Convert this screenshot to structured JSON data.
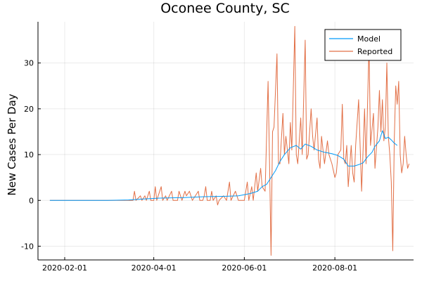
{
  "chart_data": {
    "type": "line",
    "title": "Oconee County, SC",
    "xlabel": "",
    "ylabel": "New Cases Per Day",
    "xlim": [
      "2020-01-14",
      "2020-09-23"
    ],
    "ylim": [
      -13,
      39
    ],
    "x_ticks": [
      {
        "date": "2020-02-01",
        "label": "2020-02-01"
      },
      {
        "date": "2020-04-01",
        "label": "2020-04-01"
      },
      {
        "date": "2020-06-01",
        "label": "2020-06-01"
      },
      {
        "date": "2020-08-01",
        "label": "2020-08-01"
      }
    ],
    "y_ticks": [
      {
        "value": -10,
        "label": "-10"
      },
      {
        "value": 0,
        "label": "0"
      },
      {
        "value": 10,
        "label": "10"
      },
      {
        "value": 20,
        "label": "20"
      },
      {
        "value": 30,
        "label": "30"
      }
    ],
    "grid": true,
    "legend_position": "top-right",
    "series": [
      {
        "name": "Model",
        "color": "#009af9",
        "points": [
          [
            "2020-01-22",
            0
          ],
          [
            "2020-03-01",
            0
          ],
          [
            "2020-03-15",
            0.1
          ],
          [
            "2020-03-25",
            0.3
          ],
          [
            "2020-04-05",
            0.5
          ],
          [
            "2020-04-20",
            0.6
          ],
          [
            "2020-05-05",
            0.8
          ],
          [
            "2020-05-20",
            0.9
          ],
          [
            "2020-05-28",
            1.0
          ],
          [
            "2020-06-05",
            1.5
          ],
          [
            "2020-06-10",
            2.0
          ],
          [
            "2020-06-13",
            3.0
          ],
          [
            "2020-06-16",
            3.5
          ],
          [
            "2020-06-19",
            5.0
          ],
          [
            "2020-06-22",
            6.5
          ],
          [
            "2020-06-25",
            8.5
          ],
          [
            "2020-06-28",
            10.0
          ],
          [
            "2020-07-02",
            11.5
          ],
          [
            "2020-07-06",
            12.0
          ],
          [
            "2020-07-09",
            11.2
          ],
          [
            "2020-07-12",
            12.3
          ],
          [
            "2020-07-16",
            11.8
          ],
          [
            "2020-07-20",
            11.0
          ],
          [
            "2020-07-25",
            10.5
          ],
          [
            "2020-07-30",
            10.2
          ],
          [
            "2020-08-03",
            9.8
          ],
          [
            "2020-08-07",
            9.0
          ],
          [
            "2020-08-10",
            7.5
          ],
          [
            "2020-08-14",
            7.5
          ],
          [
            "2020-08-17",
            7.8
          ],
          [
            "2020-08-20",
            8.2
          ],
          [
            "2020-08-23",
            9.5
          ],
          [
            "2020-08-26",
            10.5
          ],
          [
            "2020-08-28",
            11.8
          ],
          [
            "2020-08-31",
            13.0
          ],
          [
            "2020-09-02",
            15.2
          ],
          [
            "2020-09-04",
            13.5
          ],
          [
            "2020-09-06",
            13.8
          ],
          [
            "2020-09-08",
            13.2
          ],
          [
            "2020-09-10",
            12.5
          ],
          [
            "2020-09-12",
            12.0
          ]
        ]
      },
      {
        "name": "Reported",
        "color": "#e26f46",
        "points": [
          [
            "2020-01-22",
            0
          ],
          [
            "2020-03-15",
            0
          ],
          [
            "2020-03-18",
            0
          ],
          [
            "2020-03-19",
            2
          ],
          [
            "2020-03-20",
            0
          ],
          [
            "2020-03-23",
            1
          ],
          [
            "2020-03-24",
            0
          ],
          [
            "2020-03-26",
            1
          ],
          [
            "2020-03-27",
            0
          ],
          [
            "2020-03-29",
            2
          ],
          [
            "2020-03-30",
            0
          ],
          [
            "2020-04-01",
            0
          ],
          [
            "2020-04-02",
            3
          ],
          [
            "2020-04-03",
            0
          ],
          [
            "2020-04-06",
            3
          ],
          [
            "2020-04-07",
            0
          ],
          [
            "2020-04-09",
            1
          ],
          [
            "2020-04-10",
            0
          ],
          [
            "2020-04-13",
            2
          ],
          [
            "2020-04-14",
            0
          ],
          [
            "2020-04-17",
            0
          ],
          [
            "2020-04-18",
            2
          ],
          [
            "2020-04-20",
            0
          ],
          [
            "2020-04-22",
            2
          ],
          [
            "2020-04-23",
            1
          ],
          [
            "2020-04-25",
            2
          ],
          [
            "2020-04-27",
            0
          ],
          [
            "2020-05-01",
            2
          ],
          [
            "2020-05-02",
            0
          ],
          [
            "2020-05-04",
            0
          ],
          [
            "2020-05-05",
            1
          ],
          [
            "2020-05-06",
            3
          ],
          [
            "2020-05-07",
            0
          ],
          [
            "2020-05-09",
            0
          ],
          [
            "2020-05-10",
            2
          ],
          [
            "2020-05-11",
            0
          ],
          [
            "2020-05-13",
            1
          ],
          [
            "2020-05-14",
            -1
          ],
          [
            "2020-05-15",
            0
          ],
          [
            "2020-05-18",
            1
          ],
          [
            "2020-05-20",
            0
          ],
          [
            "2020-05-22",
            4
          ],
          [
            "2020-05-23",
            0
          ],
          [
            "2020-05-26",
            2
          ],
          [
            "2020-05-28",
            0
          ],
          [
            "2020-05-30",
            0
          ],
          [
            "2020-06-01",
            0
          ],
          [
            "2020-06-03",
            4
          ],
          [
            "2020-06-04",
            0
          ],
          [
            "2020-06-06",
            3
          ],
          [
            "2020-06-07",
            0
          ],
          [
            "2020-06-09",
            6
          ],
          [
            "2020-06-10",
            2
          ],
          [
            "2020-06-12",
            7
          ],
          [
            "2020-06-13",
            3
          ],
          [
            "2020-06-15",
            2
          ],
          [
            "2020-06-17",
            26
          ],
          [
            "2020-06-18",
            8
          ],
          [
            "2020-06-19",
            -12
          ],
          [
            "2020-06-20",
            15
          ],
          [
            "2020-06-21",
            16
          ],
          [
            "2020-06-23",
            32
          ],
          [
            "2020-06-24",
            8
          ],
          [
            "2020-06-25",
            8
          ],
          [
            "2020-06-27",
            19
          ],
          [
            "2020-06-28",
            10
          ],
          [
            "2020-06-29",
            14
          ],
          [
            "2020-07-01",
            8
          ],
          [
            "2020-07-02",
            17
          ],
          [
            "2020-07-03",
            11
          ],
          [
            "2020-07-05",
            38
          ],
          [
            "2020-07-06",
            10
          ],
          [
            "2020-07-07",
            8
          ],
          [
            "2020-07-09",
            18
          ],
          [
            "2020-07-10",
            10
          ],
          [
            "2020-07-12",
            35
          ],
          [
            "2020-07-13",
            9
          ],
          [
            "2020-07-14",
            10
          ],
          [
            "2020-07-16",
            20
          ],
          [
            "2020-07-17",
            14
          ],
          [
            "2020-07-18",
            11
          ],
          [
            "2020-07-20",
            18
          ],
          [
            "2020-07-21",
            9
          ],
          [
            "2020-07-22",
            7
          ],
          [
            "2020-07-23",
            14
          ],
          [
            "2020-07-25",
            8
          ],
          [
            "2020-07-27",
            13
          ],
          [
            "2020-07-28",
            10
          ],
          [
            "2020-07-30",
            8
          ],
          [
            "2020-08-01",
            5
          ],
          [
            "2020-08-02",
            6
          ],
          [
            "2020-08-03",
            10
          ],
          [
            "2020-08-05",
            11
          ],
          [
            "2020-08-06",
            21
          ],
          [
            "2020-08-07",
            9
          ],
          [
            "2020-08-08",
            8
          ],
          [
            "2020-08-09",
            12
          ],
          [
            "2020-08-10",
            3
          ],
          [
            "2020-08-12",
            12
          ],
          [
            "2020-08-13",
            6
          ],
          [
            "2020-08-14",
            4
          ],
          [
            "2020-08-15",
            12
          ],
          [
            "2020-08-17",
            22
          ],
          [
            "2020-08-18",
            12
          ],
          [
            "2020-08-19",
            2
          ],
          [
            "2020-08-21",
            20
          ],
          [
            "2020-08-22",
            8
          ],
          [
            "2020-08-24",
            34
          ],
          [
            "2020-08-25",
            12
          ],
          [
            "2020-08-27",
            19
          ],
          [
            "2020-08-28",
            7
          ],
          [
            "2020-08-30",
            16
          ],
          [
            "2020-08-31",
            24
          ],
          [
            "2020-09-01",
            15
          ],
          [
            "2020-09-02",
            22
          ],
          [
            "2020-09-03",
            13
          ],
          [
            "2020-09-04",
            16
          ],
          [
            "2020-09-05",
            30
          ],
          [
            "2020-09-06",
            14
          ],
          [
            "2020-09-07",
            10
          ],
          [
            "2020-09-08",
            4
          ],
          [
            "2020-09-09",
            -11
          ],
          [
            "2020-09-10",
            13
          ],
          [
            "2020-09-11",
            25
          ],
          [
            "2020-09-12",
            21
          ],
          [
            "2020-09-13",
            26
          ],
          [
            "2020-09-14",
            10
          ],
          [
            "2020-09-15",
            6
          ],
          [
            "2020-09-16",
            8
          ],
          [
            "2020-09-17",
            14
          ],
          [
            "2020-09-18",
            10
          ],
          [
            "2020-09-19",
            7
          ],
          [
            "2020-09-20",
            8
          ]
        ]
      }
    ]
  }
}
